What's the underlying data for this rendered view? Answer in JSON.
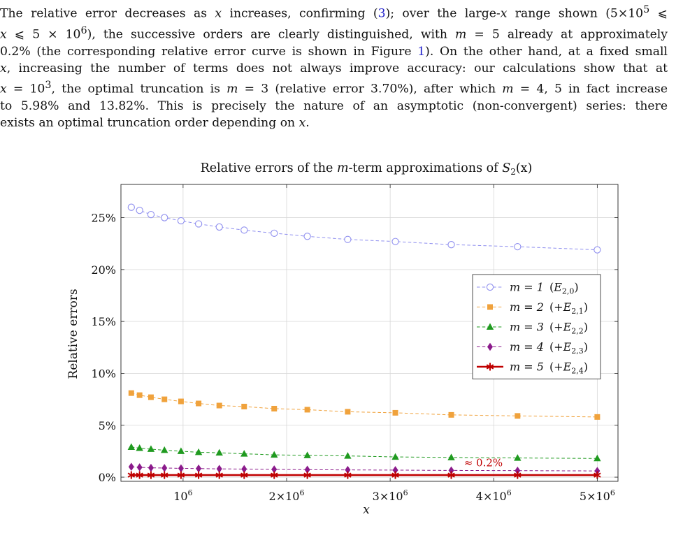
{
  "paragraph": {
    "lines": [
      {
        "a": "The relative error decreases as ",
        "b": "x",
        "c": " increases, confirming (",
        "ref": "3",
        "d": "); over the large-",
        "e": "x",
        "f": " range shown (5×10",
        "g": "5",
        "h": " ⩽"
      },
      {
        "a": "x",
        "b": " ⩽ 5 × 10",
        "c": "6",
        "d": "), the successive orders are clearly distinguished, with ",
        "e": "m",
        "f": " = 5 already at approximately"
      },
      {
        "a": "0.2% (the corresponding relative error curve is shown in Figure ",
        "ref": "1",
        "b": "). On the other hand, at a fixed small"
      },
      {
        "a": "x",
        "b": ", increasing the number of terms does not always improve accuracy: our calculations show that at"
      },
      {
        "a": "x",
        "b": " = 10",
        "c": "3",
        "d": ", the optimal truncation is ",
        "e": "m",
        "f": " = 3 (relative error 3.70%), after which ",
        "g": "m",
        "h": " = 4, 5 in fact increase"
      },
      {
        "a": "to 5.98% and 13.82%. This is precisely the nature of an asymptotic (non-convergent) series: there"
      },
      {
        "a": "exists an optimal truncation order depending on ",
        "b": "x",
        "c": "."
      }
    ]
  },
  "chart_data": {
    "type": "line",
    "title": "Relative errors of the m-term approximations of S2(x)",
    "title_parts": {
      "pre": "Relative errors of the ",
      "m": "m",
      "mid": "-term approximations of ",
      "S": "S",
      "sub": "2",
      "post": "(x)"
    },
    "xlabel": "x",
    "ylabel": "Relative errors",
    "xlim": [
      400000,
      5200000
    ],
    "ylim": [
      -0.4,
      28.2
    ],
    "grid": true,
    "legend_position": "right",
    "x_ticks": [
      {
        "value": 1000000,
        "base": "10",
        "exp": "6"
      },
      {
        "value": 2000000,
        "base": "2×10",
        "exp": "6"
      },
      {
        "value": 3000000,
        "base": "3×10",
        "exp": "6"
      },
      {
        "value": 4000000,
        "base": "4×10",
        "exp": "6"
      },
      {
        "value": 5000000,
        "base": "5×10",
        "exp": "6"
      }
    ],
    "y_ticks": [
      {
        "value": 0,
        "label": "0%"
      },
      {
        "value": 5,
        "label": "5%"
      },
      {
        "value": 10,
        "label": "10%"
      },
      {
        "value": 15,
        "label": "15%"
      },
      {
        "value": 20,
        "label": "20%"
      },
      {
        "value": 25,
        "label": "25%"
      }
    ],
    "x": [
      500000,
      580000,
      690000,
      820000,
      980000,
      1150000,
      1350000,
      1590000,
      1880000,
      2200000,
      2590000,
      3050000,
      3590000,
      4230000,
      5000000
    ],
    "series": [
      {
        "name": "m = 1",
        "term": "E",
        "sub": "2,0",
        "prefix": "",
        "color": "#8f8fef",
        "marker": "circle",
        "dashed": true,
        "values": [
          26.0,
          25.7,
          25.3,
          25.0,
          24.7,
          24.4,
          24.1,
          23.8,
          23.5,
          23.2,
          22.9,
          22.7,
          22.4,
          22.2,
          21.9
        ]
      },
      {
        "name": "m = 2",
        "term": "E",
        "sub": "2,1",
        "prefix": "+",
        "color": "#f0a23c",
        "marker": "square",
        "dashed": true,
        "values": [
          8.1,
          7.9,
          7.7,
          7.5,
          7.3,
          7.1,
          6.9,
          6.8,
          6.6,
          6.5,
          6.3,
          6.2,
          6.0,
          5.9,
          5.8
        ]
      },
      {
        "name": "m = 3",
        "term": "E",
        "sub": "2,2",
        "prefix": "+",
        "color": "#1f9a1f",
        "marker": "triangle",
        "dashed": true,
        "values": [
          2.9,
          2.8,
          2.7,
          2.6,
          2.5,
          2.4,
          2.35,
          2.25,
          2.15,
          2.1,
          2.05,
          1.95,
          1.9,
          1.85,
          1.8
        ]
      },
      {
        "name": "m = 4",
        "term": "E",
        "sub": "2,3",
        "prefix": "+",
        "color": "#8b1a8b",
        "marker": "diamond",
        "dashed": true,
        "values": [
          1.0,
          0.95,
          0.9,
          0.88,
          0.85,
          0.83,
          0.8,
          0.78,
          0.75,
          0.72,
          0.7,
          0.68,
          0.65,
          0.63,
          0.6
        ]
      },
      {
        "name": "m = 5",
        "term": "E",
        "sub": "2,4",
        "prefix": "+",
        "color": "#c00000",
        "marker": "star",
        "dashed": false,
        "values": [
          0.2,
          0.2,
          0.2,
          0.2,
          0.2,
          0.2,
          0.2,
          0.2,
          0.2,
          0.2,
          0.2,
          0.2,
          0.2,
          0.2,
          0.2
        ]
      }
    ],
    "annotation": {
      "text": "≈ 0.2%",
      "x": 3900000,
      "y": 1.05,
      "color": "#c00000"
    }
  }
}
